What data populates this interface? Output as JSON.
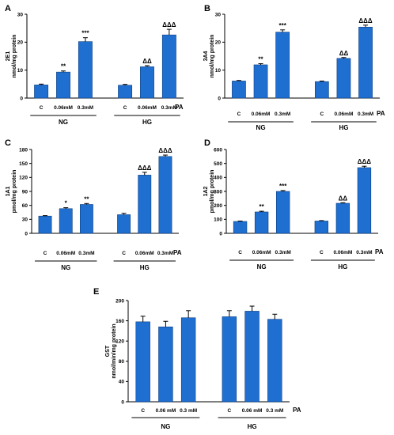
{
  "style": {
    "bar_color": "#1f6fd1",
    "bar_edge": "#0d3f80",
    "axis_color": "#000000"
  },
  "chart_data": [
    {
      "panel": "A",
      "type": "bar",
      "ylabel_lines": [
        "2E1",
        "nmol/mg protein"
      ],
      "ylim": [
        0,
        30
      ],
      "yticks": [
        0,
        10,
        20,
        30
      ],
      "categories": [
        "C",
        "0.06mM",
        "0.3mM",
        "C",
        "0.06mM",
        "0.3mM"
      ],
      "values": [
        4.7,
        9.3,
        20.2,
        4.6,
        11.2,
        22.6
      ],
      "errors": [
        0.3,
        0.4,
        1.4,
        0.3,
        0.4,
        2.0
      ],
      "annotations": [
        "",
        "**",
        "***",
        "",
        "ΔΔ",
        "ΔΔΔ"
      ],
      "groups": [
        {
          "label": "NG",
          "span": [
            0,
            2
          ]
        },
        {
          "label": "HG",
          "span": [
            3,
            5
          ]
        }
      ],
      "x_factor_label": "PA"
    },
    {
      "panel": "B",
      "type": "bar",
      "ylabel_lines": [
        "3A4",
        "nmol/mg protein"
      ],
      "ylim": [
        0,
        30
      ],
      "yticks": [
        0,
        10,
        20,
        30
      ],
      "categories": [
        "C",
        "0.06mM",
        "0.3mM",
        "C",
        "0.06mM",
        "0.3mM"
      ],
      "values": [
        6.1,
        11.9,
        23.6,
        5.9,
        14.2,
        25.4
      ],
      "errors": [
        0.2,
        0.4,
        0.8,
        0.2,
        0.3,
        0.7
      ],
      "annotations": [
        "",
        "**",
        "***",
        "",
        "ΔΔ",
        "ΔΔΔ"
      ],
      "groups": [
        {
          "label": "NG",
          "span": [
            0,
            2
          ]
        },
        {
          "label": "HG",
          "span": [
            3,
            5
          ]
        }
      ],
      "x_factor_label": "PA"
    },
    {
      "panel": "C",
      "type": "bar",
      "ylabel_lines": [
        "1A1",
        "pmol/mg protein"
      ],
      "ylim": [
        0,
        180
      ],
      "yticks": [
        0,
        30,
        60,
        90,
        120,
        150,
        180
      ],
      "categories": [
        "C",
        "0.06mM",
        "0.3mM",
        "C",
        "0.06mM",
        "0.3mM"
      ],
      "values": [
        37,
        53,
        62,
        40,
        125,
        165
      ],
      "errors": [
        1.0,
        2.0,
        2.0,
        3.0,
        6.0,
        3.0
      ],
      "annotations": [
        "",
        "*",
        "**",
        "",
        "ΔΔΔ",
        "ΔΔΔ"
      ],
      "groups": [
        {
          "label": "NG",
          "span": [
            0,
            2
          ]
        },
        {
          "label": "HG",
          "span": [
            3,
            5
          ]
        }
      ],
      "x_factor_label": "PA"
    },
    {
      "panel": "D",
      "type": "bar",
      "ylabel_lines": [
        "1A2",
        "pmol/mg protein"
      ],
      "ylim": [
        0,
        600
      ],
      "yticks": [
        0,
        100,
        200,
        300,
        400,
        500,
        600
      ],
      "categories": [
        "C",
        "0.06mM",
        "0.3mM",
        "C",
        "0.06mM",
        "0.3mM"
      ],
      "values": [
        85,
        153,
        300,
        88,
        215,
        470
      ],
      "errors": [
        3,
        5,
        6,
        3,
        4,
        10
      ],
      "annotations": [
        "",
        "**",
        "***",
        "",
        "ΔΔ",
        "ΔΔΔ"
      ],
      "groups": [
        {
          "label": "NG",
          "span": [
            0,
            2
          ]
        },
        {
          "label": "HG",
          "span": [
            3,
            5
          ]
        }
      ],
      "x_factor_label": "PA"
    },
    {
      "panel": "E",
      "type": "bar",
      "ylabel_lines": [
        "GST",
        "nmol/min/mg protein"
      ],
      "ylim": [
        0,
        200
      ],
      "yticks": [
        0,
        40,
        80,
        120,
        160,
        200
      ],
      "categories": [
        "C",
        "0.06 mM",
        "0.3 mM",
        "C",
        "0.06 mM",
        "0.3 mM"
      ],
      "values": [
        158,
        148,
        166,
        168,
        179,
        163
      ],
      "errors": [
        11,
        11,
        14,
        12,
        10,
        10
      ],
      "annotations": [
        "",
        "",
        "",
        "",
        "",
        ""
      ],
      "groups": [
        {
          "label": "NG",
          "span": [
            0,
            2
          ]
        },
        {
          "label": "HG",
          "span": [
            3,
            5
          ]
        }
      ],
      "x_factor_label": "PA"
    }
  ]
}
